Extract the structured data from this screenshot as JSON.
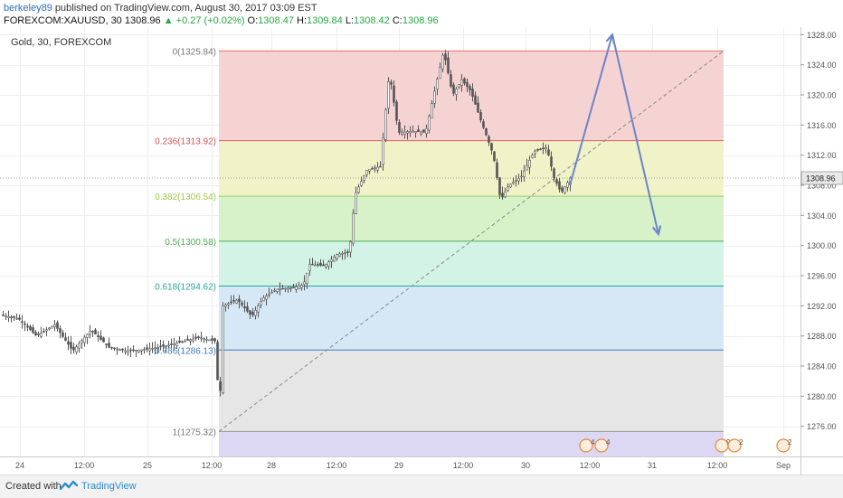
{
  "header": {
    "user": "berkeley89",
    "published": "published on TradingView.com, August 30, 2017 03:09 EST",
    "symbol": "FOREXCOM:XAUUSD, 30",
    "last": "1308.96",
    "change": "▲ +0.27 (+0.02%)",
    "o_label": "O:",
    "o_value": "1308.47",
    "h_label": "H:",
    "h_value": "1309.84",
    "l_label": "L:",
    "l_value": "1308.42",
    "c_label": "C:",
    "c_value": "1308.96"
  },
  "footer": {
    "created_with": "Created with",
    "brand": "TradingView"
  },
  "colors": {
    "up": "#27a644",
    "down": "#e33b3b",
    "candle": "#555555",
    "arrow": "#6c84c9"
  },
  "chart_data": {
    "type": "candlestick",
    "title": "Gold, 30, FOREXCOM",
    "ylim": [
      1272,
      1329
    ],
    "y_ticks": [
      "1276.00",
      "1280.00",
      "1284.00",
      "1288.00",
      "1292.00",
      "1296.00",
      "1300.00",
      "1304.00",
      "1308.00",
      "1312.00",
      "1316.00",
      "1320.00",
      "1324.00",
      "1328.00"
    ],
    "last_price_label": "1308.96",
    "x_tick_labels": [
      "24",
      "12:00",
      "25",
      "12:00",
      "28",
      "12:00",
      "29",
      "12:00",
      "30",
      "12:00",
      "31",
      "12:00",
      "Sep"
    ],
    "fib_levels": [
      {
        "label": "0(1325.84)",
        "price": 1325.84,
        "line": "#e57373",
        "fill": "#f6d3d3",
        "text": "#777777"
      },
      {
        "label": "0.236(1313.92)",
        "price": 1313.92,
        "line": "#e06060",
        "fill": "#f0f2c8",
        "text": "#d9534f"
      },
      {
        "label": "0.382(1306.54)",
        "price": 1306.54,
        "line": "#9ccc65",
        "fill": "#d7f2c9",
        "text": "#9ccc3c"
      },
      {
        "label": "0.5(1300.58)",
        "price": 1300.58,
        "line": "#4caf50",
        "fill": "#d3f3e6",
        "text": "#4caf50"
      },
      {
        "label": "0.618(1294.62)",
        "price": 1294.62,
        "line": "#26a69a",
        "fill": "#d6e8f5",
        "text": "#26a69a"
      },
      {
        "label": "0.786(1286.13)",
        "price": 1286.13,
        "line": "#3f7cc0",
        "fill": "#e6e6e6",
        "text": "#3f7cc0"
      },
      {
        "label": "1(1275.32)",
        "price": 1275.32,
        "line": "#999999",
        "fill": "#dcd8f3",
        "text": "#777777"
      }
    ],
    "price_path": [
      [
        0,
        1290.8
      ],
      [
        20,
        1290.3
      ],
      [
        40,
        1288.0
      ],
      [
        60,
        1289.5
      ],
      [
        80,
        1286.0
      ],
      [
        100,
        1288.8
      ],
      [
        120,
        1286.5
      ],
      [
        140,
        1286.0
      ],
      [
        160,
        1286.2
      ],
      [
        180,
        1286.6
      ],
      [
        200,
        1287.2
      ],
      [
        220,
        1287.8
      ],
      [
        238,
        1287.3
      ],
      [
        242,
        1277.0
      ],
      [
        246,
        1292.0
      ],
      [
        262,
        1292.8
      ],
      [
        278,
        1290.6
      ],
      [
        290,
        1293.0
      ],
      [
        305,
        1294.2
      ],
      [
        322,
        1294.4
      ],
      [
        335,
        1294.8
      ],
      [
        342,
        1297.5
      ],
      [
        358,
        1297.3
      ],
      [
        372,
        1298.8
      ],
      [
        386,
        1299.2
      ],
      [
        392,
        1306.8
      ],
      [
        405,
        1310.0
      ],
      [
        420,
        1310.5
      ],
      [
        430,
        1323.0
      ],
      [
        440,
        1315.0
      ],
      [
        456,
        1315.2
      ],
      [
        470,
        1315.0
      ],
      [
        480,
        1320.5
      ],
      [
        490,
        1325.8
      ],
      [
        500,
        1320.0
      ],
      [
        510,
        1322.0
      ],
      [
        520,
        1320.5
      ],
      [
        530,
        1317.0
      ],
      [
        545,
        1312.0
      ],
      [
        553,
        1306.0
      ],
      [
        562,
        1308.0
      ],
      [
        576,
        1309.2
      ],
      [
        590,
        1312.5
      ],
      [
        604,
        1313.0
      ],
      [
        612,
        1309.0
      ],
      [
        620,
        1307.0
      ],
      [
        630,
        1308.96
      ]
    ],
    "projection": [
      {
        "x": 630,
        "price": 1308.0
      },
      {
        "x": 677,
        "price": 1328.0
      },
      {
        "x": 728,
        "price": 1301.5
      }
    ],
    "events_markers": [
      {
        "x": 648,
        "text": "4"
      },
      {
        "x": 665,
        "text": "4"
      },
      {
        "x": 798,
        "text": "9"
      },
      {
        "x": 812,
        "text": "2"
      },
      {
        "x": 866,
        "text": "2"
      }
    ]
  }
}
